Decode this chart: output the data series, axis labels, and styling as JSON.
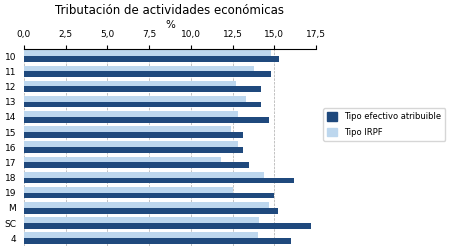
{
  "title": "Tributación de actividades económicas",
  "xlabel": "%",
  "categories": [
    "10",
    "11",
    "12",
    "13",
    "14",
    "15",
    "16",
    "17",
    "18",
    "19",
    "M",
    "SC",
    "4"
  ],
  "tipo_efectivo": [
    15.3,
    14.8,
    14.2,
    14.2,
    14.7,
    13.1,
    13.1,
    13.5,
    16.2,
    15.0,
    15.2,
    17.2,
    16.0
  ],
  "tipo_irpf": [
    14.8,
    13.8,
    12.7,
    13.3,
    12.8,
    12.4,
    12.8,
    11.8,
    14.4,
    12.5,
    14.7,
    14.1,
    14.0
  ],
  "color_efectivo": "#1F497D",
  "color_irpf": "#BDD7EE",
  "xlim": [
    0,
    17.5
  ],
  "xticks": [
    0.0,
    2.5,
    5.0,
    7.5,
    10.0,
    12.5,
    15.0,
    17.5
  ],
  "xtick_labels": [
    "0,0",
    "2,5",
    "5,0",
    "7,5",
    "10,0",
    "12,5",
    "15,0",
    "17,5"
  ],
  "legend_label1": "Tipo efectivo atribuible",
  "legend_label2": "Tipo IRPF",
  "bar_height": 0.38,
  "figsize": [
    4.5,
    2.5
  ],
  "dpi": 100
}
